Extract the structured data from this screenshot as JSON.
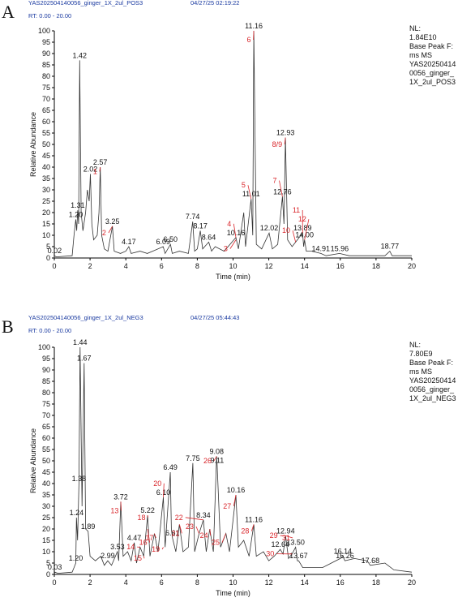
{
  "chart_data": [
    {
      "type": "line",
      "panel": "A",
      "file": "YAS202504140056_ginger_1X_2ul_POS3",
      "date": "04/27/25 02:19:22",
      "range": "RT: 0.00 - 20.00",
      "info": [
        "NL:",
        "1.84E10",
        "Base Peak F:",
        "ms  MS",
        "YAS20250414",
        "0056_ginger_",
        "1X_2ul_POS3"
      ],
      "xlabel": "Time (min)",
      "ylabel": "Relative Abundance",
      "color": "#333333",
      "xlim": [
        0,
        20
      ],
      "ylim": [
        0,
        100
      ],
      "xticks": [
        0,
        2,
        4,
        6,
        8,
        10,
        12,
        14,
        16,
        18,
        20
      ],
      "yticks": [
        0,
        5,
        10,
        15,
        20,
        25,
        30,
        35,
        40,
        45,
        50,
        55,
        60,
        65,
        70,
        75,
        80,
        85,
        90,
        95,
        100
      ],
      "x": [
        0,
        0.02,
        0.1,
        1.0,
        1.1,
        1.2,
        1.25,
        1.31,
        1.36,
        1.42,
        1.5,
        1.6,
        1.75,
        1.85,
        1.95,
        2.02,
        2.1,
        2.2,
        2.4,
        2.5,
        2.57,
        2.65,
        2.8,
        3.0,
        3.25,
        3.35,
        3.7,
        4.0,
        4.17,
        4.3,
        4.8,
        5.2,
        5.5,
        6.09,
        6.2,
        6.5,
        6.6,
        7.0,
        7.5,
        7.74,
        7.85,
        8.0,
        8.17,
        8.3,
        8.64,
        8.8,
        9.0,
        9.5,
        10.16,
        10.3,
        10.6,
        10.7,
        11.01,
        11.1,
        11.16,
        11.3,
        11.6,
        12.02,
        12.2,
        12.5,
        12.76,
        12.85,
        12.93,
        13.05,
        13.3,
        13.5,
        13.89,
        13.95,
        14.0,
        14.1,
        14.4,
        14.91,
        15.2,
        15.96,
        16.5,
        17.5,
        18.5,
        18.77,
        18.9,
        20
      ],
      "values": [
        0,
        1,
        0.5,
        1,
        10,
        17,
        12,
        21,
        15,
        87,
        20,
        12,
        20,
        30,
        25,
        37,
        15,
        8,
        10,
        20,
        40,
        10,
        4,
        3,
        14,
        3,
        2,
        3,
        5,
        2,
        3,
        2,
        3,
        5,
        2,
        6,
        2,
        3,
        2,
        16,
        3,
        4,
        12,
        4,
        7,
        3,
        5,
        3,
        9,
        4,
        20,
        5,
        26,
        10,
        100,
        6,
        4,
        11,
        4,
        6,
        27,
        15,
        53,
        8,
        5,
        7,
        11,
        5,
        8,
        3,
        3,
        2,
        1,
        2,
        1,
        1,
        1,
        3,
        1,
        1
      ],
      "peak_labels": [
        "0.02",
        "1.20",
        "1.31",
        "1.42",
        "2.02",
        "2.57",
        "3.25",
        "4.17",
        "6.09",
        "6.50",
        "7.74",
        "8.17",
        "8.64",
        "10.16",
        "11.01",
        "11.16",
        "12.02",
        "12.76",
        "12.93",
        "13.89",
        "14.00",
        "14.91",
        "15.96",
        "18.77"
      ],
      "annotations": [
        "1",
        "2",
        "3",
        "4",
        "5",
        "6",
        "7",
        "8/9",
        "10",
        "11",
        "12"
      ]
    },
    {
      "type": "line",
      "panel": "B",
      "file": "YAS202504140056_ginger_1X_2ul_NEG3",
      "date": "04/27/25 05:44:43",
      "range": "RT: 0.00 - 20.00",
      "info": [
        "NL:",
        "7.80E9",
        "Base Peak F:",
        "ms  MS",
        "YAS20250414",
        "0056_ginger_",
        "1X_2ul_NEG3"
      ],
      "xlabel": "Time (min)",
      "ylabel": "Relative Abundance",
      "color": "#333333",
      "xlim": [
        0,
        20
      ],
      "ylim": [
        0,
        100
      ],
      "xticks": [
        0,
        2,
        4,
        6,
        8,
        10,
        12,
        14,
        16,
        18,
        20
      ],
      "yticks": [
        0,
        5,
        10,
        15,
        20,
        25,
        30,
        35,
        40,
        45,
        50,
        55,
        60,
        65,
        70,
        75,
        80,
        85,
        90,
        95,
        100
      ],
      "x": [
        0,
        0.03,
        0.2,
        1.0,
        1.1,
        1.2,
        1.24,
        1.3,
        1.38,
        1.44,
        1.55,
        1.67,
        1.75,
        1.89,
        2.0,
        2.3,
        2.6,
        2.8,
        2.99,
        3.2,
        3.53,
        3.6,
        3.72,
        3.85,
        4.1,
        4.3,
        4.47,
        4.6,
        4.8,
        5.0,
        5.22,
        5.35,
        5.6,
        5.8,
        6.1,
        6.2,
        6.49,
        6.55,
        6.61,
        6.8,
        7.0,
        7.2,
        7.5,
        7.75,
        7.85,
        8.1,
        8.34,
        8.5,
        8.7,
        8.9,
        9.08,
        9.11,
        9.3,
        9.6,
        9.8,
        10.16,
        10.3,
        10.6,
        10.9,
        11.16,
        11.3,
        11.7,
        12.0,
        12.3,
        12.64,
        12.8,
        12.94,
        13.1,
        13.3,
        13.5,
        13.6,
        13.67,
        13.9,
        14.5,
        15.0,
        15.5,
        16.0,
        16.14,
        16.2,
        16.26,
        16.8,
        17.5,
        17.68,
        18.5,
        19.0,
        20
      ],
      "values": [
        0,
        1,
        0.5,
        1,
        3,
        5,
        25,
        15,
        40,
        100,
        30,
        93,
        20,
        19,
        8,
        6,
        8,
        4,
        6,
        4,
        10,
        6,
        32,
        8,
        10,
        6,
        14,
        5,
        12,
        8,
        26,
        8,
        18,
        10,
        34,
        12,
        45,
        20,
        16,
        10,
        22,
        10,
        12,
        49,
        10,
        18,
        24,
        10,
        20,
        10,
        52,
        48,
        12,
        18,
        10,
        35,
        12,
        15,
        8,
        22,
        8,
        10,
        6,
        8,
        11,
        9,
        17,
        7,
        9,
        12,
        6,
        6,
        3,
        3,
        3,
        5,
        7,
        8,
        7,
        6,
        7,
        6,
        4,
        5,
        2,
        1
      ],
      "peak_labels": [
        "0.03",
        "1.20",
        "1.24",
        "1.38",
        "1.44",
        "1.67",
        "1.89",
        "2.99",
        "3.53",
        "3.72",
        "4.47",
        "5.22",
        "6.10",
        "6.49",
        "6.61",
        "7.75",
        "8.34",
        "9.08",
        "9.11",
        "10.16",
        "11.16",
        "12.64",
        "12.94",
        "13.50",
        "13.67",
        "16.14",
        "16.26",
        "17.68"
      ],
      "annotations": [
        "13",
        "14",
        "15",
        "16",
        "17",
        "18",
        "19",
        "20",
        "21",
        "22",
        "23",
        "24",
        "25",
        "26",
        "27",
        "28",
        "29",
        "30",
        "31"
      ]
    }
  ]
}
